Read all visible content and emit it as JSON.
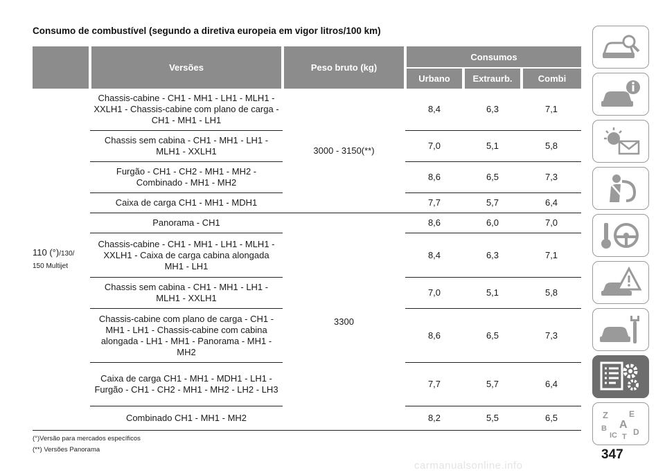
{
  "page": {
    "title": "Consumo de combustível (segundo a diretiva europeia em vigor litros/100 km)",
    "page_number": "347",
    "watermark": "carmanualsonline.info"
  },
  "table": {
    "headers": {
      "versions": "Versões",
      "weight": "Peso bruto (kg)",
      "consumption": "Consumos",
      "urban": "Urbano",
      "extra": "Extraurb.",
      "combined": "Combi"
    },
    "model": {
      "main": "110 (°)",
      "suffix": "/130/ 150 Multijet"
    },
    "weights": {
      "group_a": "3000 - 3150(**)",
      "group_b": "3300"
    },
    "rows": [
      {
        "version": "Chassis-cabine - CH1 - MH1 - LH1 - MLH1 - XXLH1 - Chassis-cabine com plano de carga - CH1 - MH1 - LH1",
        "urbano": "8,4",
        "extraurb": "6,3",
        "combi": "7,1"
      },
      {
        "version": "Chassis sem cabina - CH1 - MH1 - LH1 - MLH1 - XXLH1",
        "urbano": "7,0",
        "extraurb": "5,1",
        "combi": "5,8"
      },
      {
        "version": "Furgão - CH1 - CH2 - MH1 - MH2 - Combinado - MH1 - MH2",
        "urbano": "8,6",
        "extraurb": "6,5",
        "combi": "7,3"
      },
      {
        "version": "Caixa de carga CH1 - MH1 - MDH1",
        "urbano": "7,7",
        "extraurb": "5,7",
        "combi": "6,4"
      },
      {
        "version": "Panorama - CH1",
        "urbano": "8,6",
        "extraurb": "6,0",
        "combi": "7,0"
      },
      {
        "version": "Chassis-cabine - CH1 - MH1 - LH1 - MLH1 - XXLH1 - Caixa de carga cabina alongada MH1 - LH1",
        "urbano": "8,4",
        "extraurb": "6,3",
        "combi": "7,1"
      },
      {
        "version": "Chassis sem cabina - CH1 - MH1 - LH1 - MLH1 - XXLH1",
        "urbano": "7,0",
        "extraurb": "5,1",
        "combi": "5,8"
      },
      {
        "version": "Chassis-cabine com plano de carga - CH1 - MH1 - LH1 - Chassis-cabine com cabina alongada - LH1 - MH1 - Panorama - MH1 - MH2",
        "urbano": "8,6",
        "extraurb": "6,5",
        "combi": "7,3"
      },
      {
        "version": "Caixa de carga CH1 - MH1 - MDH1 - LH1 - Furgão - CH1 - CH2 - MH1 - MH2 - LH2 - LH3",
        "urbano": "7,7",
        "extraurb": "5,7",
        "combi": "6,4"
      },
      {
        "version": "Combinado CH1 - MH1 - MH2",
        "urbano": "8,2",
        "extraurb": "5,5",
        "combi": "6,5"
      }
    ]
  },
  "notes": {
    "note1": "(°)Versão para mercados específicos",
    "note2": "(**) Versões Panorama"
  },
  "sidebar": {
    "tabs": [
      {
        "icon": "car-search-icon"
      },
      {
        "icon": "car-info-icon"
      },
      {
        "icon": "warning-light-message-icon"
      },
      {
        "icon": "seatbelt-airbag-icon"
      },
      {
        "icon": "key-steering-wheel-icon"
      },
      {
        "icon": "car-breakdown-warning-icon"
      },
      {
        "icon": "car-wrench-icon"
      },
      {
        "icon": "specs-gears-icon",
        "active": true
      },
      {
        "icon": "alphabet-index-icon"
      }
    ],
    "colors": {
      "border": "#9a9a9a",
      "active": "#6d6d6d"
    }
  }
}
